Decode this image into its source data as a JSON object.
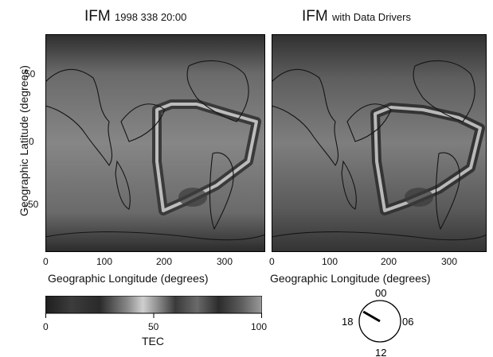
{
  "chart_data": [
    {
      "type": "heatmap",
      "title": "IFM",
      "subtitle": "1998 338 20:00",
      "xlabel": "Geographic Longitude (degrees)",
      "ylabel": "Geographic Latitude (degrees)",
      "xlim": [
        0,
        360
      ],
      "ylim": [
        -90,
        90
      ],
      "x_ticks": [
        "0",
        "100",
        "200",
        "300"
      ],
      "y_ticks": [
        "50",
        "0",
        "-50"
      ],
      "grid": false
    },
    {
      "type": "heatmap",
      "title": "IFM",
      "subtitle": "with Data Drivers",
      "xlabel": "Geographic Longitude (degrees)",
      "xlim": [
        0,
        360
      ],
      "ylim": [
        -90,
        90
      ],
      "x_ticks": [
        "0",
        "100",
        "200",
        "300"
      ],
      "grid": false
    }
  ],
  "colorbar": {
    "label": "TEC",
    "range": [
      0,
      100
    ],
    "ticks": [
      "0",
      "50",
      "100"
    ]
  },
  "clock": {
    "labels": {
      "top": "00",
      "right": "06",
      "bottom": "12",
      "left": "18"
    },
    "hand_hour": 20
  }
}
